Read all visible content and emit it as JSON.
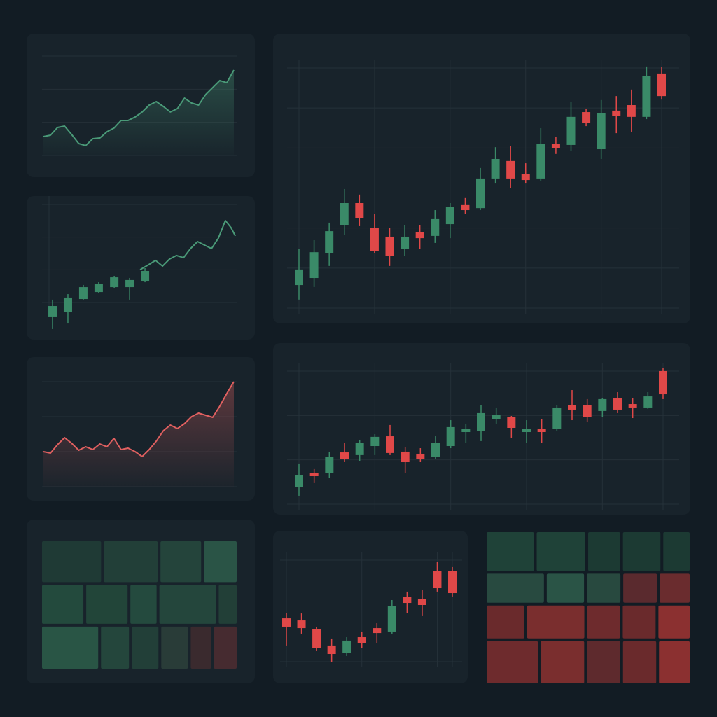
{
  "chart_data": [
    {
      "type": "line",
      "color": "#4a9a78",
      "area": true,
      "grid": true,
      "ylim": [
        0,
        100
      ],
      "values": [
        19.0,
        20.4,
        28.2,
        29.6,
        21.1,
        12.0,
        9.9,
        16.9,
        17.6,
        23.9,
        27.5,
        35.2,
        35.2,
        38.7,
        43.7,
        50.7,
        54.2,
        49.3,
        43.7,
        47.2,
        57.7,
        52.8,
        50.7,
        61.3,
        68.3,
        75.4,
        73.2,
        85.9
      ]
    },
    {
      "type": "candles-area",
      "up_color": "#3a8a68",
      "down_color": "#c84040",
      "color": "#4a9a78",
      "grid": true,
      "xlim": [
        0,
        100
      ],
      "ylim": [
        0,
        100
      ],
      "candles": [
        {
          "x": 5.4,
          "o": 12.6,
          "h": 26.9,
          "l": 2.9,
          "c": 21.7
        },
        {
          "x": 13.3,
          "o": 17.1,
          "h": 31.4,
          "l": 7.4,
          "c": 28.6
        },
        {
          "x": 21.2,
          "o": 27.4,
          "h": 38.9,
          "l": 26.9,
          "c": 37.1
        },
        {
          "x": 29.1,
          "o": 33.1,
          "h": 41.1,
          "l": 32.6,
          "c": 40.0
        },
        {
          "x": 37.1,
          "o": 37.1,
          "h": 46.3,
          "l": 36.6,
          "c": 45.1
        },
        {
          "x": 45.0,
          "o": 37.1,
          "h": 44.6,
          "l": 26.9,
          "c": 42.9
        },
        {
          "x": 52.9,
          "o": 41.7,
          "h": 52.6,
          "l": 41.1,
          "c": 50.3
        }
      ],
      "line": {
        "x": [
          50.4,
          54.7,
          58.3,
          61.9,
          65.5,
          69.1,
          72.7,
          76.3,
          79.9,
          83.5,
          87.1,
          90.6,
          94.2,
          97.1,
          99.3
        ],
        "values": [
          51.4,
          55.4,
          58.9,
          54.3,
          60.0,
          62.9,
          61.1,
          68.6,
          74.3,
          71.4,
          68.6,
          77.1,
          91.4,
          85.7,
          78.9
        ]
      }
    },
    {
      "type": "line",
      "color": "#e06060",
      "area": true,
      "grid": true,
      "ylim": [
        0,
        100
      ],
      "values": [
        33.3,
        32.0,
        40.0,
        46.7,
        41.3,
        34.7,
        38.0,
        35.3,
        40.7,
        38.0,
        46.0,
        35.3,
        36.7,
        33.3,
        28.7,
        35.3,
        43.3,
        53.3,
        58.7,
        55.3,
        60.0,
        66.7,
        70.0,
        68.0,
        66.0,
        76.7,
        88.7,
        100.0
      ]
    },
    {
      "type": "treemap",
      "rows": [
        {
          "values": [
            47,
            43,
            33,
            27
          ],
          "colors": [
            "#1f3a35",
            "#223f38",
            "#24443b",
            "#2a5446"
          ]
        },
        {
          "values": [
            32,
            32,
            21,
            43,
            15
          ],
          "colors": [
            "#234a3d",
            "#224539",
            "#244a3e",
            "#24463c",
            "#223f37"
          ]
        },
        {
          "values": [
            46,
            24,
            23,
            23,
            18,
            20
          ],
          "colors": [
            "#295545",
            "#24463c",
            "#223f38",
            "#293c38",
            "#3a2a2e",
            "#462b30"
          ]
        }
      ]
    },
    {
      "type": "candlestick",
      "up_color": "#3a8a68",
      "down_color": "#e04848",
      "grid": true,
      "ylim": [
        0,
        100
      ],
      "candles": [
        {
          "o": 9.2,
          "h": 23.7,
          "l": 3.4,
          "c": 15.4
        },
        {
          "o": 12.0,
          "h": 27.1,
          "l": 8.4,
          "c": 22.3
        },
        {
          "o": 21.8,
          "h": 34.1,
          "l": 16.8,
          "c": 30.7
        },
        {
          "o": 33.0,
          "h": 47.5,
          "l": 29.3,
          "c": 41.9
        },
        {
          "o": 41.9,
          "h": 45.3,
          "l": 32.7,
          "c": 35.8
        },
        {
          "o": 32.1,
          "h": 37.7,
          "l": 21.8,
          "c": 22.9
        },
        {
          "o": 28.5,
          "h": 32.1,
          "l": 16.8,
          "c": 20.9
        },
        {
          "o": 23.7,
          "h": 33.0,
          "l": 20.9,
          "c": 28.5
        },
        {
          "o": 30.2,
          "h": 33.0,
          "l": 23.7,
          "c": 27.9
        },
        {
          "o": 28.8,
          "h": 39.1,
          "l": 26.0,
          "c": 35.5
        },
        {
          "o": 33.5,
          "h": 41.9,
          "l": 27.9,
          "c": 40.5
        },
        {
          "o": 41.1,
          "h": 43.9,
          "l": 37.7,
          "c": 39.1
        },
        {
          "o": 39.9,
          "h": 55.9,
          "l": 39.1,
          "c": 51.7
        },
        {
          "o": 51.7,
          "h": 64.2,
          "l": 49.7,
          "c": 59.5
        },
        {
          "o": 58.7,
          "h": 64.8,
          "l": 48.0,
          "c": 51.7
        },
        {
          "o": 53.6,
          "h": 57.8,
          "l": 49.7,
          "c": 51.1
        },
        {
          "o": 51.7,
          "h": 71.8,
          "l": 50.8,
          "c": 65.6
        },
        {
          "o": 65.6,
          "h": 68.4,
          "l": 61.5,
          "c": 63.7
        },
        {
          "o": 65.1,
          "h": 82.4,
          "l": 62.8,
          "c": 76.3
        },
        {
          "o": 78.2,
          "h": 79.6,
          "l": 72.6,
          "c": 74.0
        },
        {
          "o": 63.4,
          "h": 83.0,
          "l": 59.5,
          "c": 77.7
        },
        {
          "o": 78.8,
          "h": 84.6,
          "l": 69.8,
          "c": 76.8
        },
        {
          "o": 81.0,
          "h": 87.2,
          "l": 70.4,
          "c": 76.3
        },
        {
          "o": 76.3,
          "h": 96.4,
          "l": 75.4,
          "c": 92.7
        },
        {
          "o": 93.6,
          "h": 96.1,
          "l": 83.2,
          "c": 84.6
        }
      ]
    },
    {
      "type": "candlestick",
      "up_color": "#3a8a68",
      "down_color": "#e04848",
      "grid": true,
      "ylim": [
        0,
        100
      ],
      "candles": [
        {
          "o": 11.2,
          "h": 27.0,
          "l": 5.6,
          "c": 19.5
        },
        {
          "o": 20.9,
          "h": 23.3,
          "l": 14.0,
          "c": 18.6
        },
        {
          "o": 20.9,
          "h": 34.9,
          "l": 17.2,
          "c": 31.2
        },
        {
          "o": 34.4,
          "h": 40.5,
          "l": 27.9,
          "c": 29.8
        },
        {
          "o": 32.6,
          "h": 42.8,
          "l": 28.8,
          "c": 40.9
        },
        {
          "o": 38.6,
          "h": 46.5,
          "l": 32.6,
          "c": 44.7
        },
        {
          "o": 45.1,
          "h": 52.6,
          "l": 32.6,
          "c": 34.0
        },
        {
          "o": 34.9,
          "h": 38.1,
          "l": 20.9,
          "c": 27.9
        },
        {
          "o": 33.5,
          "h": 37.2,
          "l": 27.9,
          "c": 30.2
        },
        {
          "o": 31.6,
          "h": 45.1,
          "l": 30.2,
          "c": 40.5
        },
        {
          "o": 38.6,
          "h": 55.8,
          "l": 37.2,
          "c": 51.2
        },
        {
          "o": 47.9,
          "h": 53.5,
          "l": 40.9,
          "c": 50.2
        },
        {
          "o": 48.8,
          "h": 66.0,
          "l": 41.9,
          "c": 60.5
        },
        {
          "o": 56.7,
          "h": 64.2,
          "l": 53.5,
          "c": 59.5
        },
        {
          "o": 57.7,
          "h": 58.6,
          "l": 44.2,
          "c": 50.7
        },
        {
          "o": 47.9,
          "h": 55.8,
          "l": 40.9,
          "c": 50.2
        },
        {
          "o": 50.2,
          "h": 56.7,
          "l": 40.9,
          "c": 47.9
        },
        {
          "o": 50.2,
          "h": 66.0,
          "l": 48.8,
          "c": 64.2
        },
        {
          "o": 65.6,
          "h": 75.8,
          "l": 55.8,
          "c": 62.8
        },
        {
          "o": 66.0,
          "h": 69.8,
          "l": 54.4,
          "c": 58.1
        },
        {
          "o": 61.9,
          "h": 70.7,
          "l": 58.1,
          "c": 69.8
        },
        {
          "o": 70.7,
          "h": 74.4,
          "l": 60.5,
          "c": 62.8
        },
        {
          "o": 66.5,
          "h": 70.7,
          "l": 57.2,
          "c": 64.2
        },
        {
          "o": 64.2,
          "h": 74.4,
          "l": 63.3,
          "c": 71.6
        },
        {
          "o": 88.4,
          "h": 90.7,
          "l": 69.8,
          "c": 73.0
        }
      ]
    },
    {
      "type": "candlestick",
      "up_color": "#3a8a68",
      "down_color": "#e04848",
      "grid": true,
      "ylim": [
        0,
        100
      ],
      "candles": [
        {
          "o": 41.1,
          "h": 45.7,
          "l": 18.9,
          "c": 34.3
        },
        {
          "o": 39.4,
          "h": 45.1,
          "l": 28.6,
          "c": 33.1
        },
        {
          "o": 32.0,
          "h": 34.3,
          "l": 14.3,
          "c": 17.1
        },
        {
          "o": 18.9,
          "h": 24.6,
          "l": 5.7,
          "c": 12.0
        },
        {
          "o": 12.6,
          "h": 25.7,
          "l": 10.3,
          "c": 22.9
        },
        {
          "o": 25.7,
          "h": 30.3,
          "l": 17.1,
          "c": 21.1
        },
        {
          "o": 33.1,
          "h": 37.1,
          "l": 21.1,
          "c": 29.1
        },
        {
          "o": 30.3,
          "h": 56.0,
          "l": 28.6,
          "c": 51.4
        },
        {
          "o": 58.3,
          "h": 62.9,
          "l": 45.7,
          "c": 53.7
        },
        {
          "o": 56.6,
          "h": 64.0,
          "l": 42.9,
          "c": 52.0
        },
        {
          "o": 80.0,
          "h": 86.9,
          "l": 62.9,
          "c": 65.7
        },
        {
          "o": 80.0,
          "h": 82.9,
          "l": 58.9,
          "c": 61.7
        }
      ]
    },
    {
      "type": "treemap",
      "rows": [
        {
          "values": [
            36,
            37,
            25,
            29,
            21
          ],
          "colors": [
            "#1f4238",
            "#1f4238",
            "#1c3a33",
            "#1c3a33",
            "#1c3a33"
          ]
        },
        {
          "values": [
            33,
            22,
            20,
            20,
            18
          ],
          "colors": [
            "#284a40",
            "#2a5446",
            "#28493f",
            "#5a2a2e",
            "#6a2c2e"
          ]
        },
        {
          "values": [
            25,
            37,
            22,
            22,
            21
          ],
          "colors": [
            "#6a2a2c",
            "#7a2e2e",
            "#6e2b2d",
            "#6a2a2c",
            "#8b3030"
          ]
        },
        {
          "values": [
            42,
            36,
            28,
            28,
            26
          ],
          "colors": [
            "#6e2b2d",
            "#7a2e2e",
            "#5e2a2d",
            "#6a2a2c",
            "#8b3030"
          ]
        }
      ]
    }
  ]
}
